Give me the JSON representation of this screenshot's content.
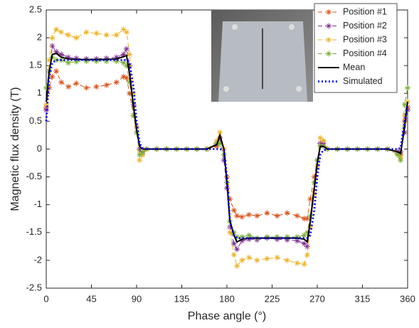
{
  "chart_data": {
    "type": "line",
    "xlabel": "Phase angle (°)",
    "ylabel": "Magnetic flux density (T)",
    "x": [
      0,
      3,
      6,
      10,
      15,
      22,
      30,
      40,
      50,
      60,
      70,
      77,
      80,
      83,
      87,
      90,
      93,
      96,
      100,
      110,
      120,
      130,
      140,
      150,
      160,
      170,
      173,
      177,
      180,
      183,
      187,
      190,
      195,
      202,
      210,
      220,
      230,
      240,
      250,
      257,
      260,
      263,
      267,
      270,
      273,
      276,
      280,
      290,
      300,
      310,
      320,
      330,
      340,
      350,
      353,
      357,
      360
    ],
    "series": [
      {
        "name": "Position #1",
        "color": "#d95319",
        "style": "dashed",
        "marker": "asterisk",
        "values": [
          0.75,
          1.1,
          1.3,
          1.4,
          1.2,
          1.12,
          1.18,
          1.1,
          1.12,
          1.15,
          1.2,
          1.3,
          1.28,
          1.0,
          0.6,
          0.3,
          0.0,
          -0.05,
          0,
          0,
          0,
          0,
          0,
          0,
          0,
          0.05,
          0.2,
          0.0,
          -0.5,
          -0.9,
          -1.1,
          -1.2,
          -1.22,
          -1.18,
          -1.2,
          -1.15,
          -1.2,
          -1.15,
          -1.2,
          -1.25,
          -1.25,
          -0.9,
          -0.5,
          -0.2,
          0.1,
          0.15,
          0,
          0,
          0,
          0,
          0,
          0,
          0,
          -0.05,
          -0.1,
          0.5,
          0.75
        ]
      },
      {
        "name": "Position #2",
        "color": "#7e2f8e",
        "style": "dashed",
        "marker": "asterisk",
        "values": [
          0.7,
          1.4,
          1.85,
          1.75,
          1.7,
          1.65,
          1.63,
          1.62,
          1.62,
          1.63,
          1.65,
          1.7,
          1.8,
          1.5,
          0.8,
          0.4,
          0.0,
          -0.1,
          0,
          0,
          0,
          0,
          0,
          0,
          0,
          0.1,
          0.2,
          -0.2,
          -0.7,
          -1.4,
          -1.7,
          -1.8,
          -1.65,
          -1.62,
          -1.63,
          -1.6,
          -1.62,
          -1.63,
          -1.65,
          -1.7,
          -1.75,
          -1.4,
          -0.8,
          -0.3,
          0.1,
          0.1,
          0,
          0,
          0,
          0,
          0,
          0,
          0,
          -0.05,
          -0.05,
          0.3,
          0.7
        ]
      },
      {
        "name": "Position #3",
        "color": "#edb120",
        "style": "dashed",
        "marker": "asterisk",
        "values": [
          0.8,
          1.6,
          2.0,
          2.15,
          2.1,
          2.05,
          2.0,
          2.1,
          2.08,
          2.05,
          2.05,
          2.15,
          2.1,
          1.7,
          1.0,
          0.4,
          -0.2,
          -0.1,
          0,
          0,
          0,
          0,
          0,
          0,
          0,
          0.15,
          0.3,
          0.0,
          -0.6,
          -1.5,
          -1.9,
          -2.1,
          -2.0,
          -1.95,
          -2.0,
          -1.97,
          -1.95,
          -2.0,
          -2.05,
          -2.07,
          -1.9,
          -1.4,
          -0.8,
          -0.3,
          0.2,
          0.15,
          0,
          0,
          0,
          0,
          0,
          0,
          0,
          -0.1,
          -0.15,
          0.6,
          0.85
        ]
      },
      {
        "name": "Position #4",
        "color": "#77ac30",
        "style": "dashed",
        "marker": "asterisk",
        "values": [
          1.1,
          1.4,
          1.65,
          1.6,
          1.6,
          1.55,
          1.57,
          1.58,
          1.58,
          1.58,
          1.58,
          1.55,
          1.5,
          1.2,
          0.6,
          0.3,
          -0.1,
          -0.05,
          0,
          0,
          0,
          0,
          0,
          0,
          0,
          0.1,
          0.1,
          -0.1,
          -0.6,
          -1.3,
          -1.5,
          -1.58,
          -1.58,
          -1.55,
          -1.6,
          -1.58,
          -1.58,
          -1.58,
          -1.58,
          -1.55,
          -1.5,
          -1.2,
          -0.6,
          -0.2,
          0.05,
          0.05,
          0,
          0,
          0,
          0,
          0,
          0,
          0,
          -0.1,
          -0.2,
          0.8,
          1.1
        ]
      },
      {
        "name": "Mean",
        "color": "#000000",
        "style": "solid",
        "marker": "none",
        "values": [
          0.85,
          1.4,
          1.7,
          1.72,
          1.65,
          1.62,
          1.61,
          1.61,
          1.61,
          1.61,
          1.62,
          1.66,
          1.68,
          1.35,
          0.75,
          0.35,
          0.05,
          0,
          0,
          0,
          0,
          0,
          0,
          0,
          0,
          0.08,
          0.25,
          0.0,
          -0.6,
          -1.3,
          -1.55,
          -1.67,
          -1.62,
          -1.6,
          -1.6,
          -1.6,
          -1.6,
          -1.6,
          -1.6,
          -1.62,
          -1.67,
          -1.3,
          -0.7,
          -0.25,
          0.05,
          0.05,
          0,
          0,
          0,
          0,
          0,
          0,
          0,
          -0.05,
          -0.08,
          0.4,
          0.85
        ]
      },
      {
        "name": "Simulated",
        "color": "#0000ff",
        "style": "dotted",
        "marker": "none",
        "values": [
          0.5,
          1.3,
          1.55,
          1.6,
          1.6,
          1.6,
          1.6,
          1.6,
          1.6,
          1.6,
          1.6,
          1.6,
          1.6,
          1.55,
          1.1,
          0.5,
          0.1,
          0.02,
          0,
          0,
          0,
          0,
          0,
          0,
          0,
          0,
          0,
          -0.02,
          -0.5,
          -1.3,
          -1.55,
          -1.6,
          -1.6,
          -1.6,
          -1.6,
          -1.6,
          -1.6,
          -1.6,
          -1.6,
          -1.6,
          -1.6,
          -1.55,
          -1.1,
          -0.5,
          -0.1,
          -0.02,
          0,
          0,
          0,
          0,
          0,
          0,
          0,
          0,
          0.02,
          0.5,
          0.8
        ]
      }
    ],
    "xlim": [
      0,
      360
    ],
    "xticks": [
      0,
      45,
      90,
      135,
      180,
      225,
      270,
      315,
      360
    ],
    "ylim": [
      -2.5,
      2.5
    ],
    "yticks": [
      -2.5,
      -2,
      -1.5,
      -1,
      -0.5,
      0,
      0.5,
      1,
      1.5,
      2,
      2.5
    ],
    "grid": false,
    "legend": "upper right"
  }
}
